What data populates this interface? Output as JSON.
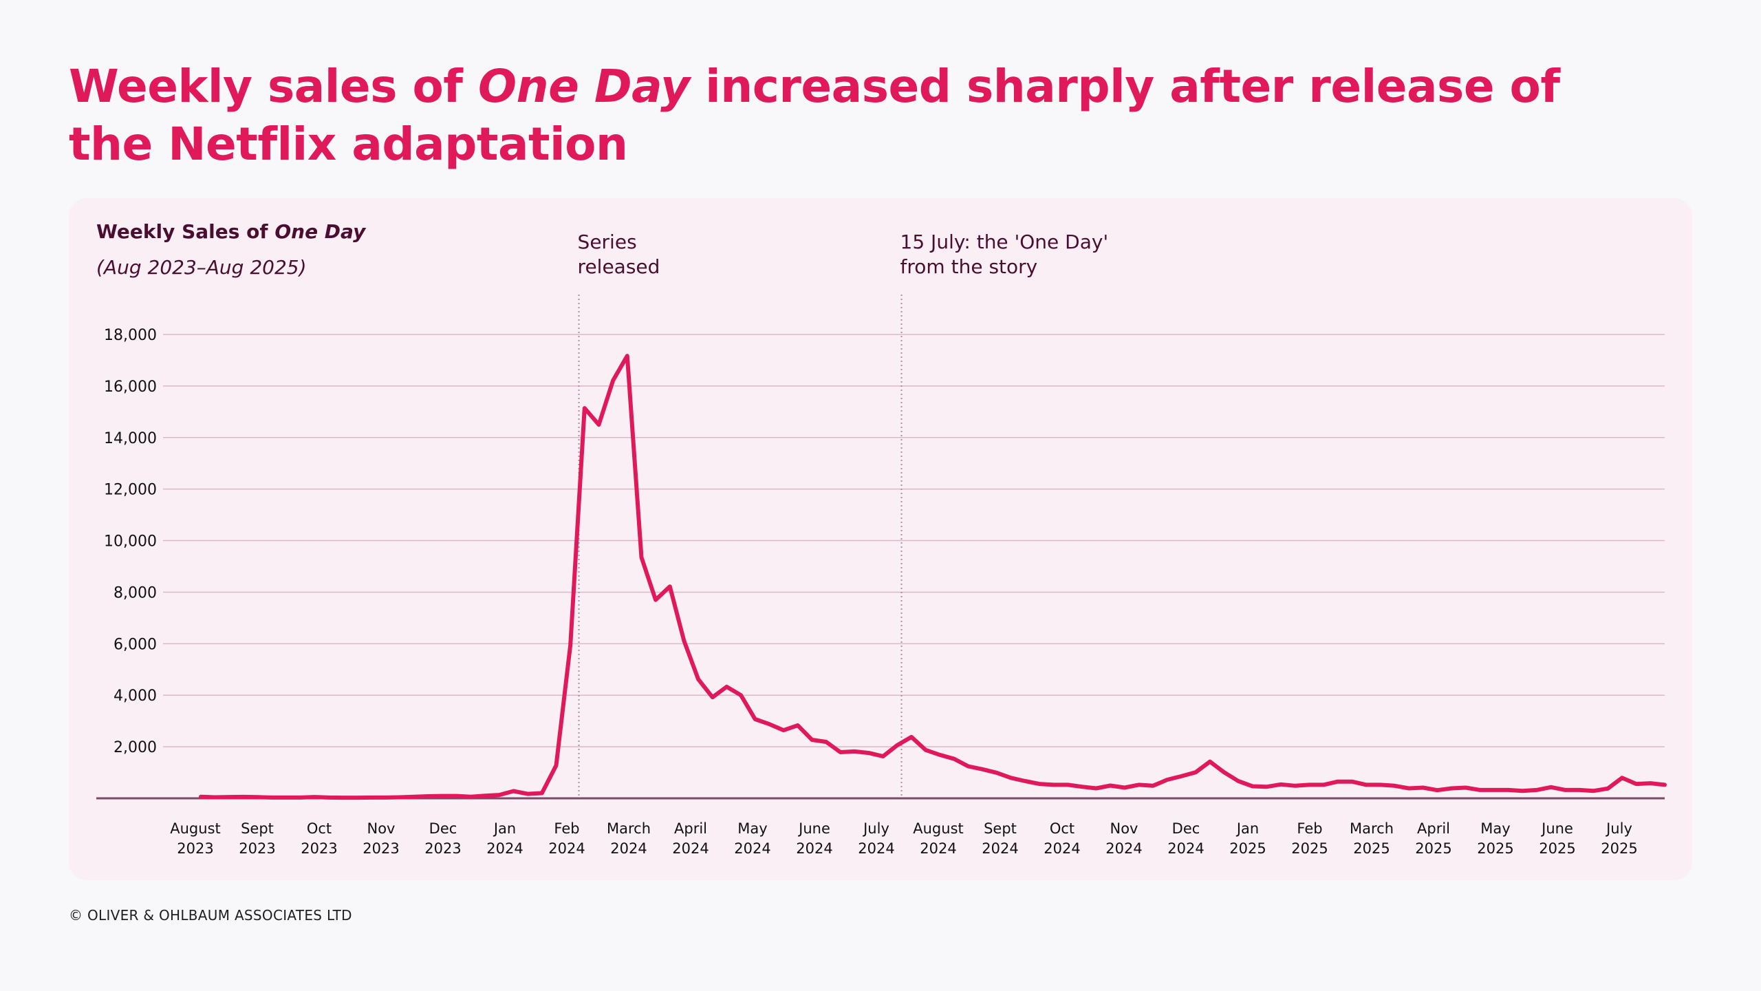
{
  "headline": {
    "part1": "Weekly sales of ",
    "italic": "One Day",
    "part2": " increased sharply after release of the Netflix adaptation"
  },
  "footer": "© OLIVER & OHLBAUM ASSOCIATES LTD",
  "colors": {
    "accent": "#E0195A",
    "line": "#E0195A",
    "card_bg": "#FAEFF5",
    "page_bg": "#F8F8FB",
    "text_dark": "#4A0E30",
    "gridline": "#D9B8C8",
    "axis": "#7A4A65"
  },
  "chart_data": {
    "type": "line",
    "title": "Weekly Sales of One Day",
    "title_plain": "Weekly Sales of ",
    "title_italic": "One Day",
    "subtitle": "(Aug 2023–Aug 2025)",
    "xlabel": "",
    "ylabel": "",
    "ylim": [
      0,
      18000
    ],
    "yticks": [
      2000,
      4000,
      6000,
      8000,
      10000,
      12000,
      14000,
      16000,
      18000
    ],
    "ytick_labels": [
      "2,000",
      "4,000",
      "6,000",
      "8,000",
      "10,000",
      "12,000",
      "14,000",
      "16,000",
      "18,000"
    ],
    "grid": true,
    "legend": "none",
    "x_month_labels": [
      {
        "month": "August",
        "year": "2023"
      },
      {
        "month": "Sept",
        "year": "2023"
      },
      {
        "month": "Oct",
        "year": "2023"
      },
      {
        "month": "Nov",
        "year": "2023"
      },
      {
        "month": "Dec",
        "year": "2023"
      },
      {
        "month": "Jan",
        "year": "2024"
      },
      {
        "month": "Feb",
        "year": "2024"
      },
      {
        "month": "March",
        "year": "2024"
      },
      {
        "month": "April",
        "year": "2024"
      },
      {
        "month": "May",
        "year": "2024"
      },
      {
        "month": "June",
        "year": "2024"
      },
      {
        "month": "July",
        "year": "2024"
      },
      {
        "month": "August",
        "year": "2024"
      },
      {
        "month": "Sept",
        "year": "2024"
      },
      {
        "month": "Oct",
        "year": "2024"
      },
      {
        "month": "Nov",
        "year": "2024"
      },
      {
        "month": "Dec",
        "year": "2024"
      },
      {
        "month": "Jan",
        "year": "2025"
      },
      {
        "month": "Feb",
        "year": "2025"
      },
      {
        "month": "March",
        "year": "2025"
      },
      {
        "month": "April",
        "year": "2025"
      },
      {
        "month": "May",
        "year": "2025"
      },
      {
        "month": "June",
        "year": "2025"
      },
      {
        "month": "July",
        "year": "2025"
      }
    ],
    "annotations": [
      {
        "lines": [
          "Series",
          "released"
        ],
        "week_index": 26.6
      },
      {
        "lines": [
          "15 July: the 'One Day'",
          "from the story"
        ],
        "week_index": 49.3
      }
    ],
    "series": [
      {
        "name": "Weekly sales",
        "values": [
          60,
          40,
          50,
          55,
          45,
          30,
          30,
          30,
          50,
          30,
          25,
          25,
          30,
          30,
          40,
          60,
          80,
          90,
          90,
          60,
          100,
          130,
          280,
          170,
          200,
          1274,
          5952,
          15140,
          14500,
          16210,
          17170,
          9350,
          7700,
          8220,
          6110,
          4620,
          3920,
          4330,
          4000,
          3070,
          2880,
          2640,
          2830,
          2270,
          2190,
          1790,
          1820,
          1760,
          1630,
          2060,
          2380,
          1874,
          1685,
          1531,
          1243,
          1126,
          991,
          793,
          667,
          559,
          523,
          523,
          450,
          387,
          495,
          414,
          523,
          486,
          721,
          856,
          1009,
          1423,
          1009,
          667,
          468,
          450,
          540,
          486,
          523,
          523,
          649,
          649,
          523,
          523,
          486,
          387,
          414,
          315,
          387,
          414,
          324,
          324,
          324,
          288,
          324,
          432,
          324,
          324,
          288,
          378,
          793,
          559,
          586,
          523
        ]
      }
    ]
  }
}
